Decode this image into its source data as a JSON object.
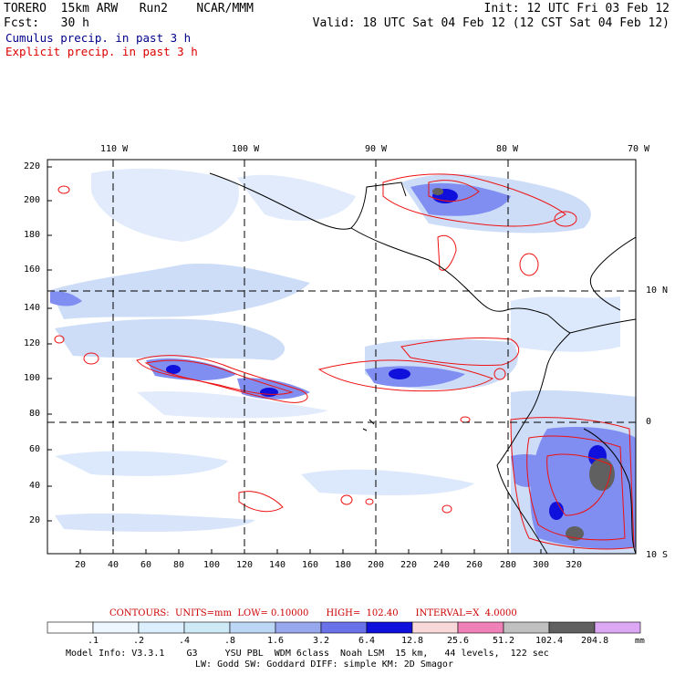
{
  "header": {
    "line1_left": "TORERO  15km ARW   Run2    NCAR/MMM",
    "line1_right": "Init: 12 UTC Fri 03 Feb 12",
    "line2_left": "Fcst:   30 h",
    "line2_right": "Valid: 18 UTC Sat 04 Feb 12 (12 CST Sat 04 Feb 12)",
    "line3": "Cumulus precip. in past 3 h",
    "line4": "Explicit precip. in past 3 h",
    "line3_color": "#00008b",
    "line4_color": "#dd0000"
  },
  "map": {
    "lon_labels": [
      "110 W",
      "100 W",
      "90 W",
      "80 W",
      "70 W"
    ],
    "lat_labels": [
      "10 N",
      "0",
      "10 S"
    ],
    "y_ticks": [
      "220",
      "200",
      "180",
      "160",
      "140",
      "120",
      "100",
      "80",
      "60",
      "40",
      "20"
    ],
    "x_ticks": [
      "20",
      "40",
      "60",
      "80",
      "100",
      "120",
      "140",
      "160",
      "180",
      "200",
      "220",
      "240",
      "260",
      "280",
      "300",
      "320"
    ]
  },
  "contour_info": {
    "label": "CONTOURS:  UNITS=mm  LOW= 0.10000      HIGH=  102.40      INTERVAL=X  4.0000",
    "color": "#cc0000"
  },
  "colorbar": {
    "labels": [
      ".1",
      ".2",
      ".4",
      ".8",
      "1.6",
      "3.2",
      "6.4",
      "12.8",
      "25.6",
      "51.2",
      "102.4",
      "204.8"
    ],
    "unit": "mm",
    "colors": [
      "#ffffff",
      "#eef6ff",
      "#dcefff",
      "#cfeaf7",
      "#bcd6f5",
      "#98a8ef",
      "#6a72ea",
      "#1010dd",
      "#f8d8d8",
      "#f080b8",
      "#c0c0c0",
      "#606060",
      "#dca8f5"
    ]
  },
  "footer": {
    "line1": "Model Info: V3.3.1    G3     YSU PBL  WDM 6class  Noah LSM  15 km,   44 levels,  122 sec",
    "line2": "LW: Godd SW: Goddard DIFF: simple KM: 2D Smagor"
  }
}
